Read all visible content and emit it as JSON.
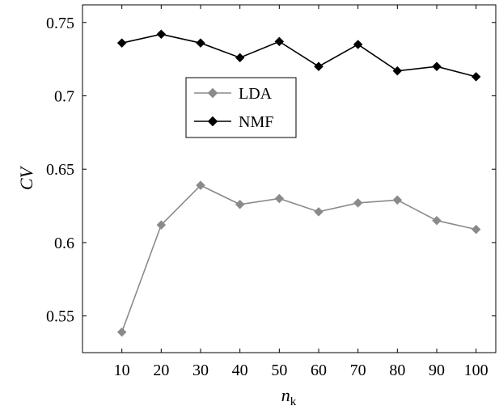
{
  "chart_data": {
    "type": "line",
    "x": [
      10,
      20,
      30,
      40,
      50,
      60,
      70,
      80,
      90,
      100
    ],
    "x_ticks": [
      "10",
      "20",
      "30",
      "40",
      "50",
      "60",
      "70",
      "80",
      "90",
      "100"
    ],
    "y_ticks": [
      "0.55",
      "0.6",
      "0.65",
      "0.7",
      "0.75"
    ],
    "y_tick_values": [
      0.55,
      0.6,
      0.65,
      0.7,
      0.75
    ],
    "xlim": [
      0,
      105
    ],
    "ylim": [
      0.525,
      0.762
    ],
    "xlabel_main": "n",
    "xlabel_sub": "k",
    "ylabel": "CV",
    "grid": false,
    "legend_position": "upper-center",
    "series": [
      {
        "name": "LDA",
        "color": "#8a8a8a",
        "marker": "diamond",
        "values": [
          0.539,
          0.612,
          0.639,
          0.626,
          0.63,
          0.621,
          0.627,
          0.629,
          0.615,
          0.609
        ]
      },
      {
        "name": "NMF",
        "color": "#000000",
        "marker": "diamond",
        "values": [
          0.736,
          0.742,
          0.736,
          0.726,
          0.737,
          0.72,
          0.735,
          0.717,
          0.72,
          0.713
        ]
      }
    ]
  }
}
